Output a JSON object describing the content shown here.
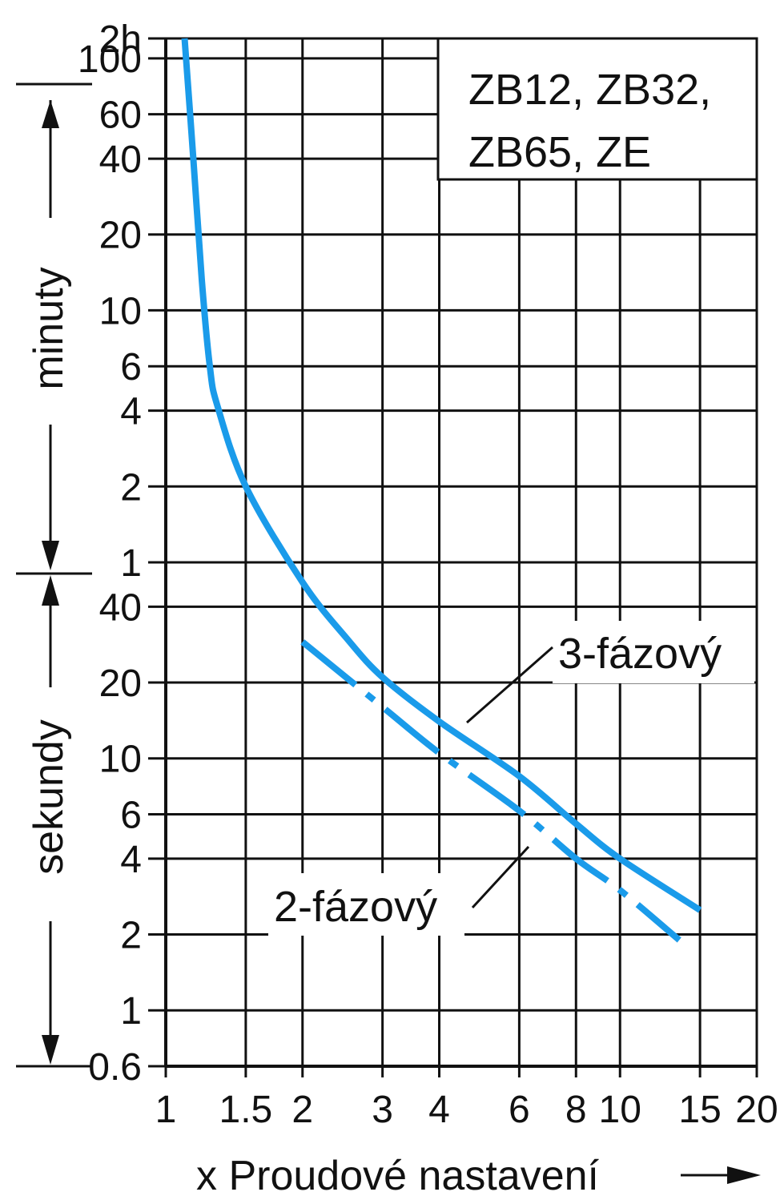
{
  "chart_data": {
    "type": "line",
    "title": "",
    "xlabel": "x Proudové nastavení",
    "x_scale": "log",
    "xlim": [
      1,
      20
    ],
    "y_scale": "log",
    "x_ticks": [
      {
        "value": 1,
        "label": "1"
      },
      {
        "value": 1.5,
        "label": "1.5"
      },
      {
        "value": 2,
        "label": "2"
      },
      {
        "value": 3,
        "label": "3"
      },
      {
        "value": 4,
        "label": "4"
      },
      {
        "value": 6,
        "label": "6"
      },
      {
        "value": 8,
        "label": "8"
      },
      {
        "value": 10,
        "label": "10"
      },
      {
        "value": 15,
        "label": "15"
      },
      {
        "value": 20,
        "label": "20"
      }
    ],
    "y_ticks": [
      {
        "value_s": 0.6,
        "label": "0.6"
      },
      {
        "value_s": 1,
        "label": "1"
      },
      {
        "value_s": 2,
        "label": "2"
      },
      {
        "value_s": 4,
        "label": "4"
      },
      {
        "value_s": 6,
        "label": "6"
      },
      {
        "value_s": 10,
        "label": "10"
      },
      {
        "value_s": 20,
        "label": "20"
      },
      {
        "value_s": 40,
        "label": "40"
      },
      {
        "value_s": 60,
        "label": "1"
      },
      {
        "value_s": 120,
        "label": "2"
      },
      {
        "value_s": 240,
        "label": "4"
      },
      {
        "value_s": 360,
        "label": "6"
      },
      {
        "value_s": 600,
        "label": "10"
      },
      {
        "value_s": 1200,
        "label": "20"
      },
      {
        "value_s": 2400,
        "label": "40"
      },
      {
        "value_s": 3600,
        "label": "60"
      },
      {
        "value_s": 6000,
        "label": "100"
      },
      {
        "value_s": 7200,
        "label": "2h"
      }
    ],
    "ylim_s": [
      0.6,
      7200
    ],
    "unit_labels": {
      "minutes": "minuty",
      "seconds": "sekundy"
    },
    "legend_box": {
      "lines": [
        "ZB12, ZB32,",
        "ZB65, ZE"
      ]
    },
    "series": [
      {
        "name": "3-fázový",
        "line_style": "solid",
        "points": [
          [
            1.1,
            7200
          ],
          [
            1.15,
            2400
          ],
          [
            1.2,
            800
          ],
          [
            1.25,
            360
          ],
          [
            1.3,
            250
          ],
          [
            1.5,
            120
          ],
          [
            2.0,
            50
          ],
          [
            2.5,
            30
          ],
          [
            3.0,
            21
          ],
          [
            4.0,
            14
          ],
          [
            6.0,
            8.5
          ],
          [
            8.0,
            5.5
          ],
          [
            10.0,
            4.0
          ],
          [
            15.0,
            2.5
          ]
        ]
      },
      {
        "name": "2-fázový",
        "line_style": "dash-dot",
        "points": [
          [
            2.0,
            29
          ],
          [
            3.0,
            16
          ],
          [
            4.0,
            10.5
          ],
          [
            6.0,
            6.2
          ],
          [
            8.0,
            4.0
          ],
          [
            10.0,
            3.0
          ],
          [
            13.5,
            1.9
          ]
        ]
      }
    ],
    "grid": true,
    "colors": {
      "series": "#1a9bea",
      "grid": "#111111"
    }
  }
}
